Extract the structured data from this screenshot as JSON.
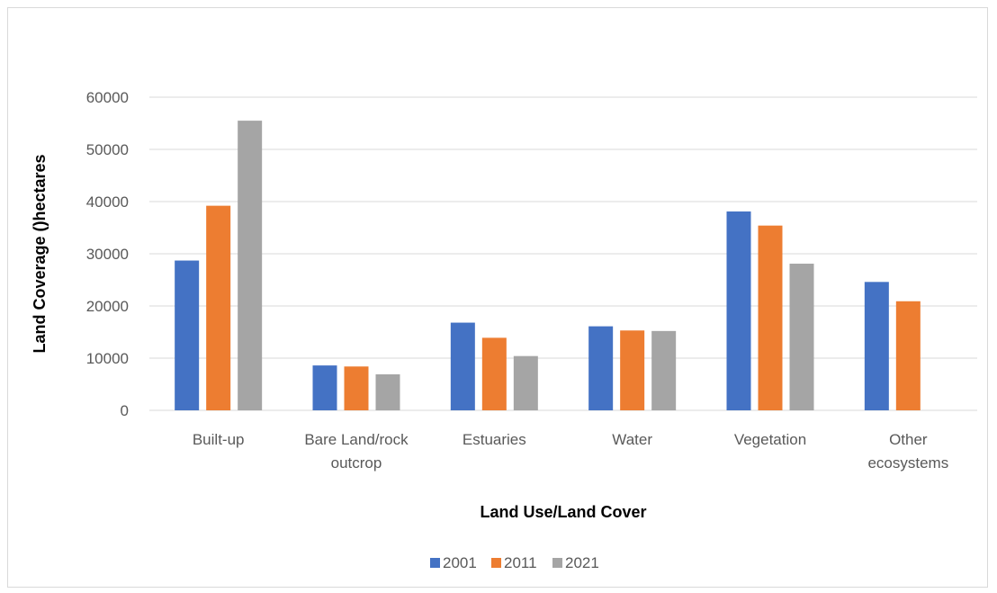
{
  "chart_data": {
    "type": "bar",
    "title": "",
    "xlabel": "Land Use/Land Cover",
    "ylabel": "Land Coverage ()hectares",
    "ylim": [
      0,
      60000
    ],
    "yticks": [
      0,
      10000,
      20000,
      30000,
      40000,
      50000,
      60000
    ],
    "categories": [
      [
        "Built-up"
      ],
      [
        "Bare Land/rock",
        "outcrop"
      ],
      [
        "Estuaries"
      ],
      [
        "Water"
      ],
      [
        "Vegetation"
      ],
      [
        "Other",
        "ecosystems"
      ]
    ],
    "series": [
      {
        "name": "2001",
        "color": "#4472C4",
        "values": [
          28700,
          8600,
          16800,
          16100,
          38100,
          24600
        ]
      },
      {
        "name": "2011",
        "color": "#ED7D31",
        "values": [
          39200,
          8400,
          13900,
          15300,
          35400,
          20900
        ]
      },
      {
        "name": "2021",
        "color": "#A5A5A5",
        "values": [
          55500,
          6900,
          10400,
          15200,
          28100,
          0
        ]
      }
    ],
    "grid": true,
    "legend_position": "bottom"
  }
}
